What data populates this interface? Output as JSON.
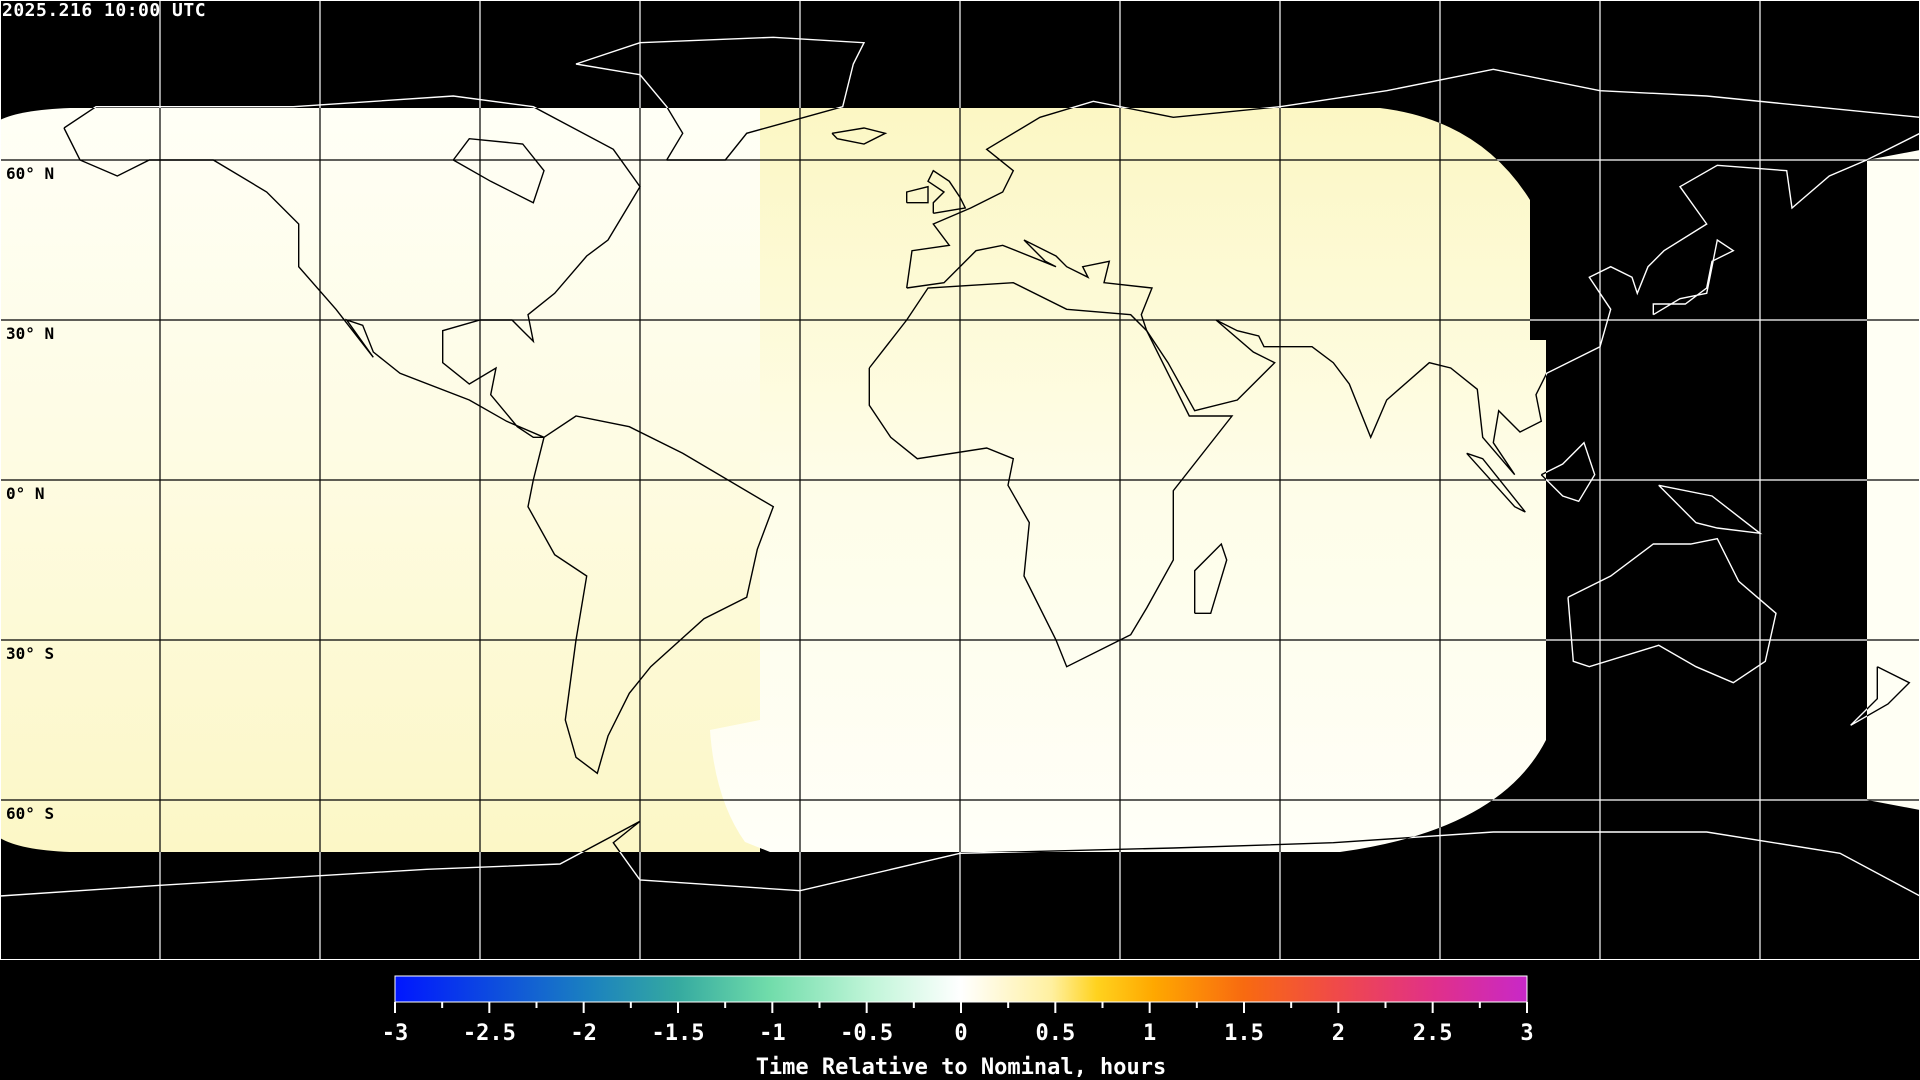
{
  "header": {
    "title": "2025.216 10:00 UTC"
  },
  "map": {
    "projection": "equirectangular",
    "lon_range": [
      -180,
      180
    ],
    "lat_range": [
      -90,
      90
    ],
    "grid_spacing_deg": 30,
    "lat_labels": [
      "60° N",
      "30° N",
      "0° N",
      "30° S",
      "60° S"
    ],
    "colors": {
      "background": "#000000",
      "coverage_yellow": "#fcf8c8",
      "coverage_white": "#fffff4",
      "coast_on_data": "#000000",
      "coast_on_nodata": "#ffffff"
    }
  },
  "chart_data": {
    "type": "heatmap",
    "title": "2025.216 10:00 UTC",
    "colorbar": {
      "label": "Time Relative to Nominal, hours",
      "range": [
        -3,
        3
      ],
      "tick_labels": [
        "-3",
        "-2.5",
        "-2",
        "-1.5",
        "-1",
        "-0.5",
        "0",
        "0.5",
        "1",
        "1.5",
        "2",
        "2.5",
        "3"
      ],
      "colors": [
        "#0016ff",
        "#1a80c0",
        "#35aaa0",
        "#70dcaa",
        "#ffffff",
        "#ffd21e",
        "#ffa800",
        "#f86a10",
        "#f04a48",
        "#c828c8"
      ]
    },
    "approx_values_hours": {
      "western_region": 0.1,
      "central_region": 0.05,
      "far_east_region": 0.0
    }
  }
}
